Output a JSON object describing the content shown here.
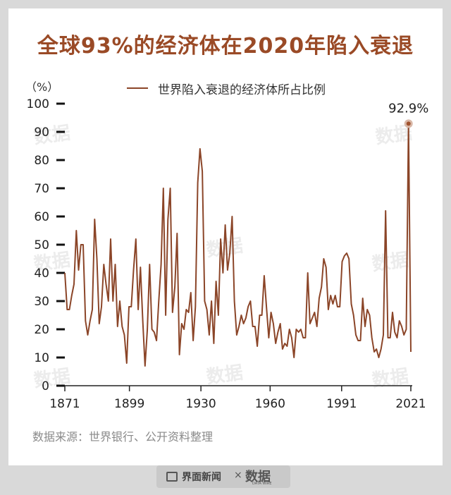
{
  "title": "全球93%的经济体在2020年陷入衰退",
  "source": "数据来源：世界银行、公开资料整理",
  "footer": {
    "brand_text": "界面新闻",
    "x": "×",
    "logo": "数据",
    "logo_sub": "DATA WIRE"
  },
  "watermark": "数据",
  "colors": {
    "accent": "#9a4a26",
    "line": "#8b4528",
    "background": "#d9d9d9"
  },
  "chart_data": {
    "type": "line",
    "title": "全球93%的经济体在2020年陷入衰退",
    "ylabel": "（%）",
    "ylim": [
      0,
      100
    ],
    "yticks": [
      0,
      10,
      20,
      30,
      40,
      50,
      60,
      70,
      80,
      90,
      100
    ],
    "xticks": [
      1871,
      1899,
      1930,
      1960,
      1991,
      2021
    ],
    "legend": "世界陷入衰退的经济体所占比例",
    "annotation": {
      "label": "92.9%",
      "x": 2020,
      "y": 92.9
    },
    "x_start": 1871,
    "x_end": 2021,
    "series": [
      {
        "name": "世界陷入衰退的经济体所占比例",
        "values": [
          40,
          27,
          27,
          32,
          36,
          55,
          41,
          50,
          50,
          23,
          18,
          23,
          27,
          59,
          45,
          22,
          28,
          43,
          36,
          30,
          52,
          30,
          43,
          21,
          30,
          21,
          18,
          8,
          28,
          28,
          41,
          52,
          27,
          42,
          23,
          7,
          20,
          43,
          20,
          19,
          16,
          30,
          43,
          70,
          25,
          59,
          70,
          26,
          35,
          54,
          11,
          22,
          20,
          27,
          26,
          33,
          16,
          28,
          72,
          84,
          76,
          30,
          27,
          18,
          30,
          15,
          37,
          25,
          52,
          40,
          57,
          41,
          47,
          60,
          30,
          18,
          21,
          25,
          22,
          24,
          28,
          30,
          21,
          21,
          14,
          25,
          25,
          39,
          28,
          17,
          26,
          22,
          15,
          19,
          22,
          13,
          15,
          14,
          20,
          17,
          10,
          20,
          19,
          20,
          17,
          17,
          40,
          22,
          24,
          26,
          21,
          31,
          35,
          45,
          42,
          27,
          32,
          29,
          32,
          28,
          28,
          44,
          46,
          47,
          45,
          29,
          25,
          18,
          16,
          16,
          31,
          21,
          27,
          25,
          17,
          12,
          13,
          10,
          13,
          18,
          62,
          17,
          17,
          26,
          19,
          17,
          23,
          21,
          18,
          20,
          93,
          12
        ]
      }
    ]
  }
}
